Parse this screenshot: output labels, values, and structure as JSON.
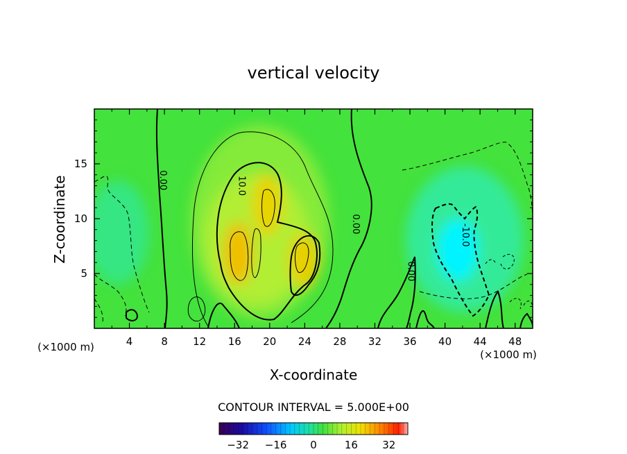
{
  "chart_data": {
    "type": "heatmap",
    "title": "vertical velocity",
    "xlabel": "X-coordinate",
    "ylabel": "Z-coordinate",
    "x_units": "(×1000 m)",
    "z_units": "(×1000 m)",
    "xlim": [
      0,
      50
    ],
    "zlim": [
      0,
      20
    ],
    "x_ticks": [
      4,
      8,
      12,
      16,
      20,
      24,
      28,
      32,
      36,
      40,
      44,
      48
    ],
    "z_ticks": [
      5,
      10,
      15
    ],
    "contour_interval_text": "CONTOUR INTERVAL = 5.000E+00",
    "contour_interval": 5.0,
    "contour_labels": [
      {
        "text": "0.00",
        "x": 7.5,
        "z": 13.5
      },
      {
        "text": "10.0",
        "x": 16.5,
        "z": 13.0
      },
      {
        "text": "0.00",
        "x": 29.5,
        "z": 9.5
      },
      {
        "text": "0.00",
        "x": 35.8,
        "z": 5.2
      },
      {
        "text": "-10.0",
        "x": 42.0,
        "z": 8.5
      }
    ],
    "colorbar": {
      "min": -40,
      "max": 40,
      "tick_labels": [
        "−32",
        "−16",
        "0",
        "16",
        "32"
      ],
      "tick_values": [
        -32,
        -16,
        0,
        16,
        32
      ]
    },
    "features": [
      {
        "kind": "updraft",
        "x": 16.0,
        "z": 6.8,
        "peak": 16
      },
      {
        "kind": "updraft",
        "x": 19.0,
        "z": 11.0,
        "peak": 13
      },
      {
        "kind": "updraft",
        "x": 24.5,
        "z": 7.0,
        "peak": 12
      },
      {
        "kind": "downdraft",
        "x": 41.0,
        "z": 7.5,
        "peak": -14
      },
      {
        "kind": "downdraft",
        "x": 3.0,
        "z": 10.0,
        "peak": -5
      }
    ],
    "colors": {
      "background_field": "#3fe03a",
      "positive_peak": "#f2b000",
      "negative_peak": "#00f0ff"
    }
  }
}
